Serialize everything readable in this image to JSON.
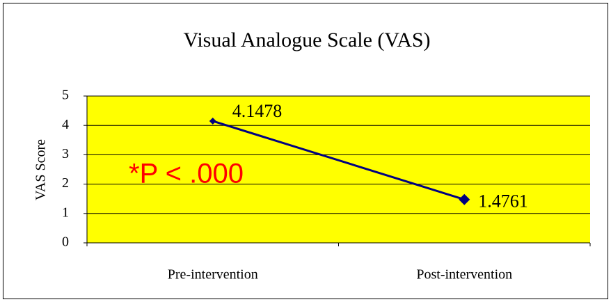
{
  "chart_data": {
    "type": "line",
    "title": "Visual Analogue Scale (VAS)",
    "y_label": "VAS Score",
    "categories": [
      "Pre-intervention",
      "Post-intervention"
    ],
    "values": [
      4.1478,
      1.4761
    ],
    "color": "#000080",
    "plot_background": "#ffff00",
    "annotation": "*P < .000",
    "annotation_color": "#ff0000",
    "ylim": [
      0,
      5
    ],
    "yticks": [
      0,
      1,
      2,
      3,
      4,
      5
    ],
    "grid": true
  }
}
